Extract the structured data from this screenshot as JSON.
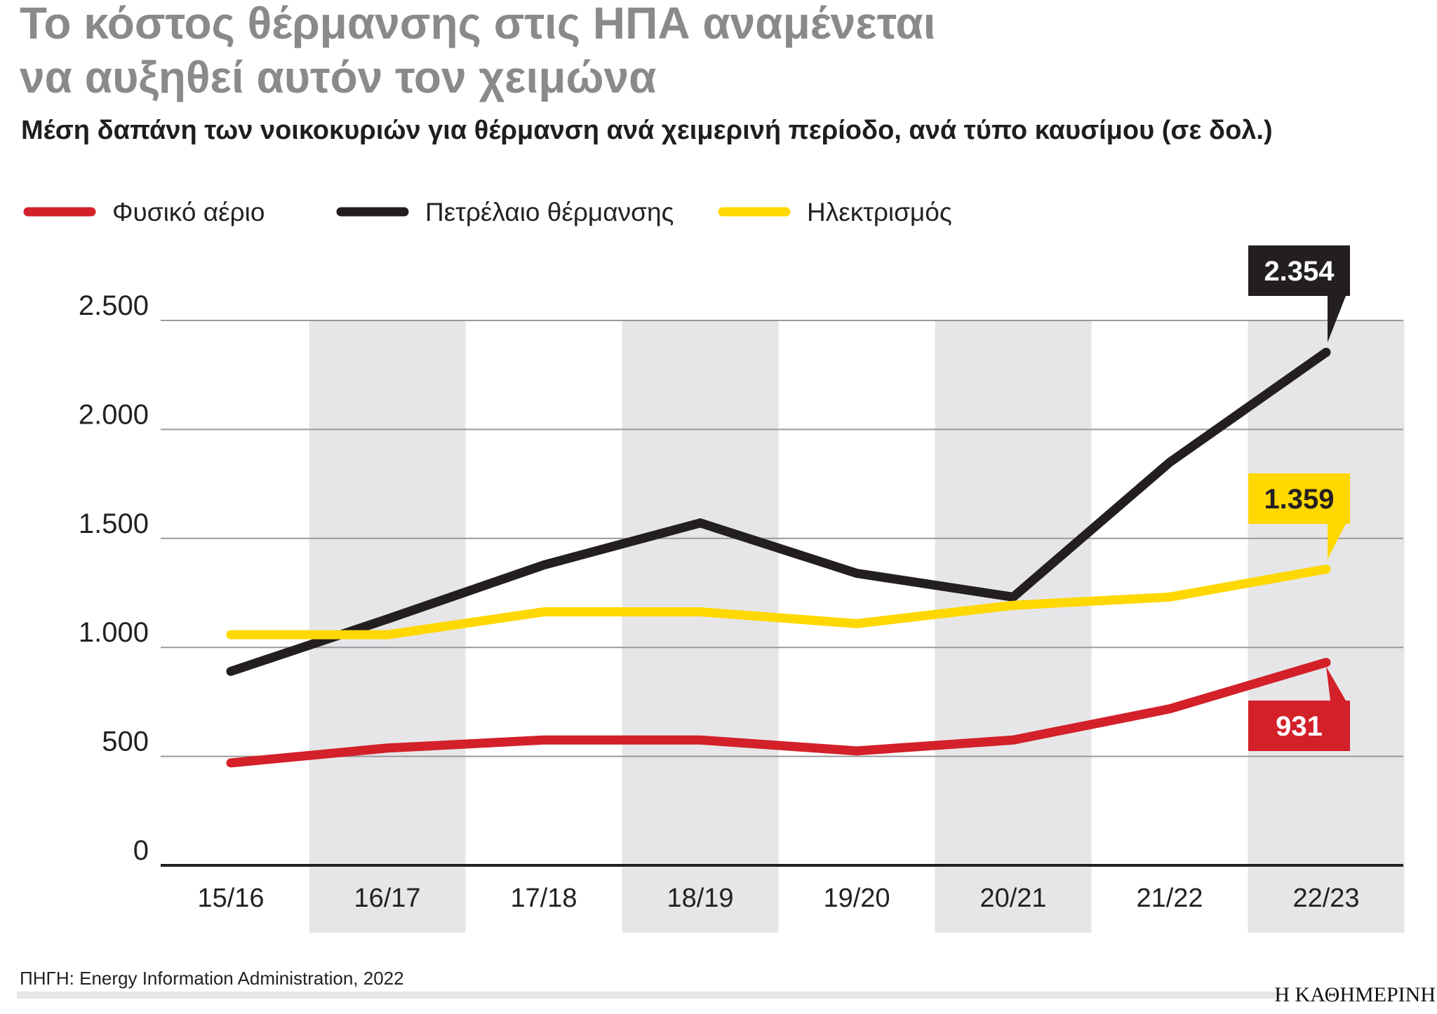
{
  "title_line1": "Το κόστος θέρμανσης στις ΗΠΑ αναμένεται",
  "title_line2": "να αυξηθεί αυτόν τον χειμώνα",
  "subtitle": "Μέση δαπάνη των νοικοκυριών για θέρμανση ανά χειμερινή περίοδο, ανά τύπο καυσίμου (σε δολ.)",
  "source": "ΠΗΓΗ: Energy Information Administration, 2022",
  "brand": "Η ΚΑΘΗΜΕΡΙΝΗ",
  "chart_data": {
    "type": "line",
    "title": "Το κόστος θέρμανσης στις ΗΠΑ αναμένεται να αυξηθεί αυτόν τον χειμώνα",
    "subtitle": "Μέση δαπάνη των νοικοκυριών για θέρμανση ανά χειμερινή περίοδο, ανά τύπο καυσίμου (σε δολ.)",
    "categories": [
      "15/16",
      "16/17",
      "17/18",
      "18/19",
      "19/20",
      "20/21",
      "21/22",
      "22/23"
    ],
    "ylim": [
      0,
      2500
    ],
    "yticks": [
      0,
      500,
      1000,
      1500,
      2000,
      2500
    ],
    "ytick_labels": [
      "0",
      "500",
      "1.000",
      "1.500",
      "2.000",
      "2.500"
    ],
    "grid": true,
    "alternating_bands": true,
    "legend_position": "top-left",
    "series": [
      {
        "name": "Φυσικό αέριο",
        "color": "#d32029",
        "values": [
          470,
          538,
          575,
          575,
          525,
          575,
          718,
          931
        ],
        "end_label": "931",
        "label_text_color": "#ffffff"
      },
      {
        "name": "Πετρέλαιο θέρμανσης",
        "color": "#231f20",
        "values": [
          890,
          1130,
          1378,
          1571,
          1340,
          1231,
          1849,
          2354
        ],
        "end_label": "2.354",
        "label_text_color": "#ffffff"
      },
      {
        "name": "Ηλεκτρισμός",
        "color": "#ffd800",
        "values": [
          1058,
          1058,
          1163,
          1163,
          1109,
          1193,
          1231,
          1359
        ],
        "end_label": "1.359",
        "label_text_color": "#231f20"
      }
    ]
  }
}
